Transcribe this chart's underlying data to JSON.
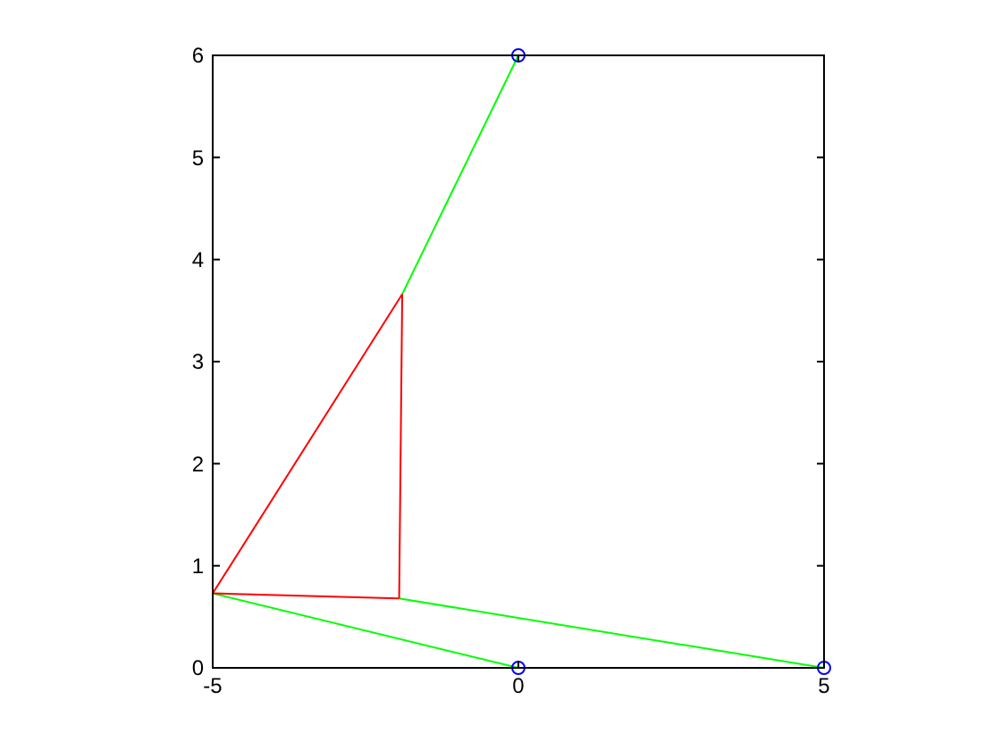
{
  "chart_data": {
    "type": "line",
    "xlim": [
      -5,
      5
    ],
    "ylim": [
      0,
      6
    ],
    "xticks": [
      -5,
      0,
      5
    ],
    "yticks": [
      0,
      1,
      2,
      3,
      4,
      5,
      6
    ],
    "grid": false,
    "marker": "none",
    "line_style": "solid",
    "series": [
      {
        "color": "#00ff00",
        "x": [
          0,
          -5
        ],
        "values": [
          0,
          0.73
        ]
      },
      {
        "color": "#00ff00",
        "x": [
          -1.95,
          5
        ],
        "values": [
          0.68,
          0
        ]
      },
      {
        "color": "#00ff00",
        "x": [
          -1.9,
          0
        ],
        "values": [
          3.66,
          6
        ]
      },
      {
        "color": "#ff0000",
        "x": [
          -5,
          -1.9
        ],
        "values": [
          0.73,
          3.66
        ]
      },
      {
        "color": "#ff0000",
        "x": [
          -1.9,
          -1.95
        ],
        "values": [
          3.66,
          0.68
        ]
      },
      {
        "color": "#ff0000",
        "x": [
          -1.95,
          -5
        ],
        "values": [
          0.68,
          0.73
        ]
      },
      {
        "type": "scatter",
        "color": "#0000ff",
        "marker": "circle",
        "x": [
          0,
          5,
          0
        ],
        "values": [
          6,
          0,
          0
        ]
      }
    ]
  }
}
